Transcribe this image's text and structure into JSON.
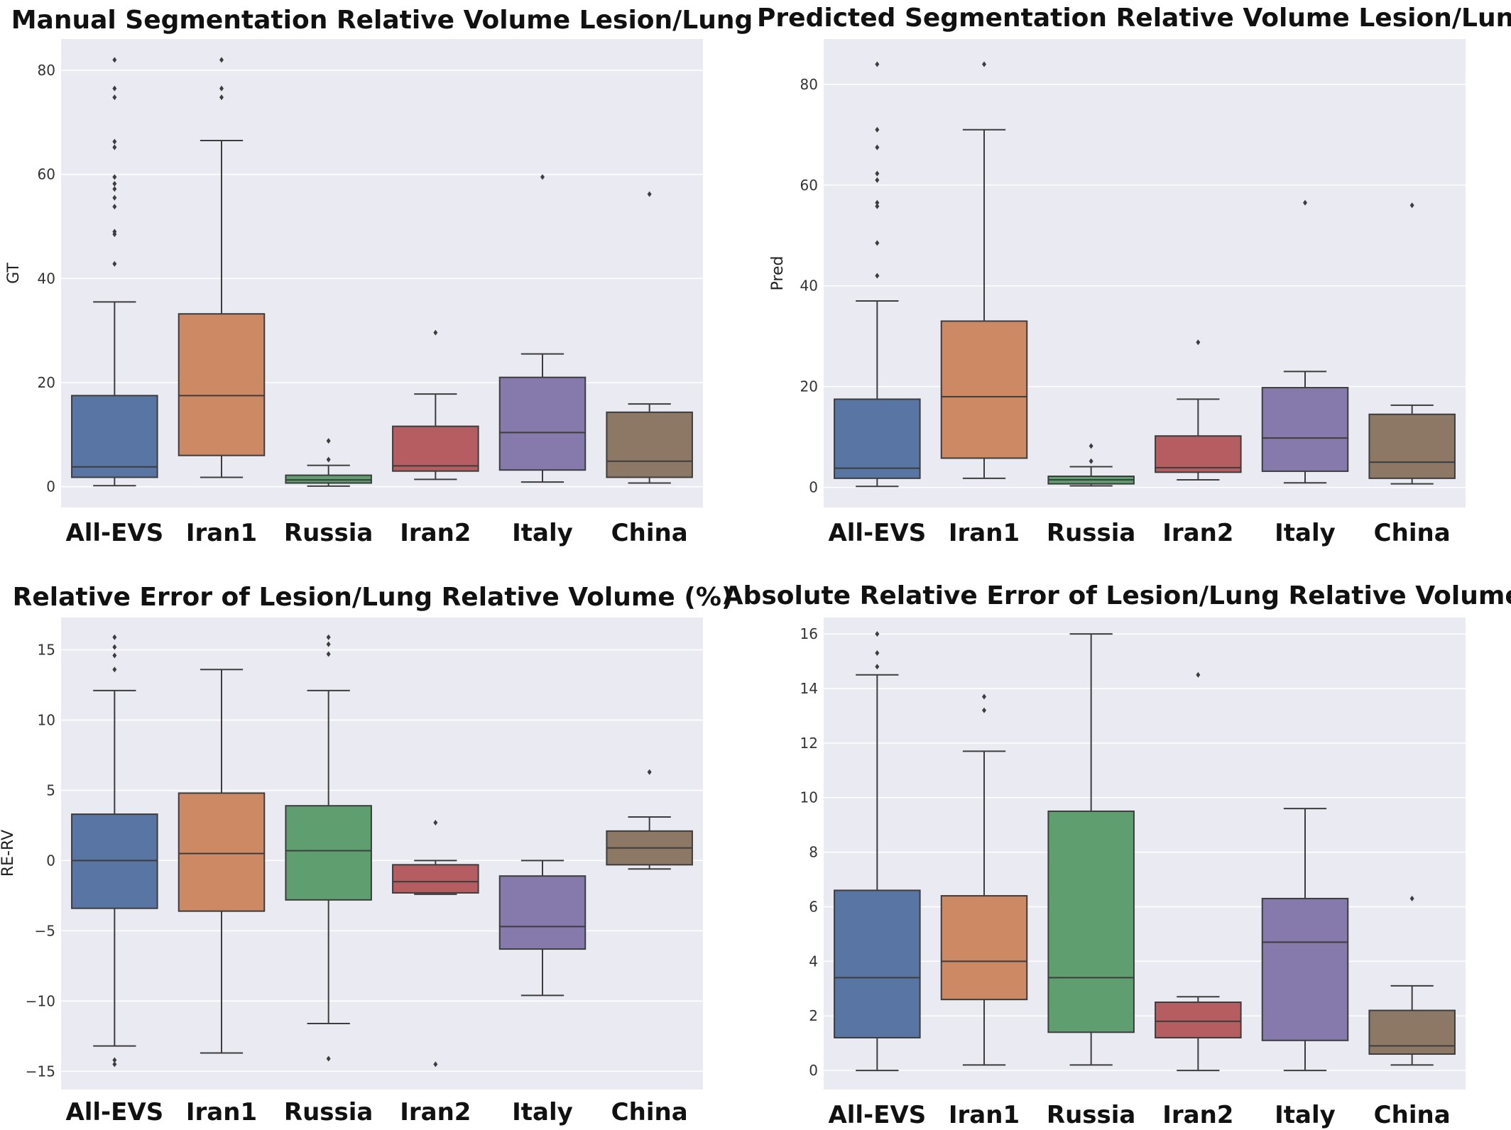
{
  "chart_data": [
    {
      "type": "box",
      "title": "Manual Segmentation Relative Volume Lesion/Lung",
      "ylabel": "GT",
      "xlabel": "",
      "ylim": [
        -4,
        86
      ],
      "yticks": [
        0,
        20,
        40,
        60,
        80
      ],
      "grid": true,
      "categories": [
        "All-EVS",
        "Iran1",
        "Russia",
        "Iran2",
        "Italy",
        "China"
      ],
      "colors": [
        "#5875a4",
        "#cc8963",
        "#5f9e6e",
        "#b55d60",
        "#857aab",
        "#8d7866"
      ],
      "boxes": [
        {
          "whisker_low": 0.2,
          "q1": 1.8,
          "median": 3.8,
          "q3": 17.5,
          "whisker_high": 35.5,
          "outliers": [
            42.8,
            48.5,
            49.0,
            53.8,
            55.5,
            57.2,
            58.2,
            59.5,
            65.2,
            66.3,
            74.8,
            76.5,
            82.0
          ]
        },
        {
          "whisker_low": 1.8,
          "q1": 6.0,
          "median": 17.5,
          "q3": 33.2,
          "whisker_high": 66.5,
          "outliers": [
            74.8,
            76.5,
            82.0
          ]
        },
        {
          "whisker_low": 0.1,
          "q1": 0.7,
          "median": 1.3,
          "q3": 2.2,
          "whisker_high": 4.1,
          "outliers": [
            5.2,
            8.8
          ]
        },
        {
          "whisker_low": 1.4,
          "q1": 3.0,
          "median": 4.0,
          "q3": 11.6,
          "whisker_high": 17.8,
          "outliers": [
            29.6
          ]
        },
        {
          "whisker_low": 0.9,
          "q1": 3.2,
          "median": 10.4,
          "q3": 21.0,
          "whisker_high": 25.5,
          "outliers": [
            59.5
          ]
        },
        {
          "whisker_low": 0.7,
          "q1": 1.8,
          "median": 4.9,
          "q3": 14.3,
          "whisker_high": 15.9,
          "outliers": [
            56.2
          ]
        }
      ]
    },
    {
      "type": "box",
      "title": "Predicted Segmentation Relative Volume Lesion/Lung",
      "ylabel": "Pred",
      "xlabel": "",
      "ylim": [
        -4,
        89
      ],
      "yticks": [
        0,
        20,
        40,
        60,
        80
      ],
      "grid": true,
      "categories": [
        "All-EVS",
        "Iran1",
        "Russia",
        "Iran2",
        "Italy",
        "China"
      ],
      "colors": [
        "#5875a4",
        "#cc8963",
        "#5f9e6e",
        "#b55d60",
        "#857aab",
        "#8d7866"
      ],
      "boxes": [
        {
          "whisker_low": 0.2,
          "q1": 1.8,
          "median": 3.8,
          "q3": 17.5,
          "whisker_high": 37.0,
          "outliers": [
            42.0,
            48.5,
            55.8,
            56.5,
            61.0,
            62.3,
            67.5,
            71.0,
            84.0
          ]
        },
        {
          "whisker_low": 1.8,
          "q1": 5.8,
          "median": 18.0,
          "q3": 33.0,
          "whisker_high": 71.0,
          "outliers": [
            84.0
          ]
        },
        {
          "whisker_low": 0.3,
          "q1": 0.7,
          "median": 1.5,
          "q3": 2.2,
          "whisker_high": 4.1,
          "outliers": [
            5.2,
            8.2
          ]
        },
        {
          "whisker_low": 1.5,
          "q1": 3.0,
          "median": 3.9,
          "q3": 10.2,
          "whisker_high": 17.5,
          "outliers": [
            28.8
          ]
        },
        {
          "whisker_low": 0.9,
          "q1": 3.2,
          "median": 9.8,
          "q3": 19.8,
          "whisker_high": 23.0,
          "outliers": [
            56.5
          ]
        },
        {
          "whisker_low": 0.7,
          "q1": 1.8,
          "median": 5.0,
          "q3": 14.5,
          "whisker_high": 16.3,
          "outliers": [
            56.0
          ]
        }
      ]
    },
    {
      "type": "box",
      "title": "Relative Error of Lesion/Lung Relative Volume (%)",
      "ylabel": "RE-RV",
      "xlabel": "",
      "ylim": [
        -16.3,
        17.3
      ],
      "yticks": [
        -15,
        -10,
        -5,
        0,
        5,
        10,
        15
      ],
      "grid": true,
      "categories": [
        "All-EVS",
        "Iran1",
        "Russia",
        "Iran2",
        "Italy",
        "China"
      ],
      "colors": [
        "#5875a4",
        "#cc8963",
        "#5f9e6e",
        "#b55d60",
        "#857aab",
        "#8d7866"
      ],
      "boxes": [
        {
          "whisker_low": -13.2,
          "q1": -3.4,
          "median": 0.0,
          "q3": 3.3,
          "whisker_high": 12.1,
          "outliers": [
            -14.5,
            -14.2,
            13.6,
            14.6,
            15.2,
            15.9
          ]
        },
        {
          "whisker_low": -13.7,
          "q1": -3.6,
          "median": 0.5,
          "q3": 4.8,
          "whisker_high": 13.6,
          "outliers": []
        },
        {
          "whisker_low": -11.6,
          "q1": -2.8,
          "median": 0.7,
          "q3": 3.9,
          "whisker_high": 12.1,
          "outliers": [
            -14.1,
            14.7,
            15.4,
            15.9
          ]
        },
        {
          "whisker_low": -2.4,
          "q1": -2.3,
          "median": -1.5,
          "q3": -0.3,
          "whisker_high": 0.0,
          "outliers": [
            -14.5,
            2.7
          ]
        },
        {
          "whisker_low": -9.6,
          "q1": -6.3,
          "median": -4.7,
          "q3": -1.1,
          "whisker_high": 0.0,
          "outliers": []
        },
        {
          "whisker_low": -0.6,
          "q1": -0.3,
          "median": 0.9,
          "q3": 2.1,
          "whisker_high": 3.1,
          "outliers": [
            6.3
          ]
        }
      ]
    },
    {
      "type": "box",
      "title": "Absolute Relative Error of Lesion/Lung Relative Volume (%)",
      "ylabel": "",
      "xlabel": "",
      "ylim": [
        -0.7,
        16.6
      ],
      "yticks": [
        0,
        2,
        4,
        6,
        8,
        10,
        12,
        14,
        16
      ],
      "grid": true,
      "categories": [
        "All-EVS",
        "Iran1",
        "Russia",
        "Iran2",
        "Italy",
        "China"
      ],
      "colors": [
        "#5875a4",
        "#cc8963",
        "#5f9e6e",
        "#b55d60",
        "#857aab",
        "#8d7866"
      ],
      "boxes": [
        {
          "whisker_low": 0.0,
          "q1": 1.2,
          "median": 3.4,
          "q3": 6.6,
          "whisker_high": 14.5,
          "outliers": [
            14.8,
            15.3,
            16.0
          ]
        },
        {
          "whisker_low": 0.2,
          "q1": 2.6,
          "median": 4.0,
          "q3": 6.4,
          "whisker_high": 11.7,
          "outliers": [
            13.2,
            13.7
          ]
        },
        {
          "whisker_low": 0.2,
          "q1": 1.4,
          "median": 3.4,
          "q3": 9.5,
          "whisker_high": 16.0,
          "outliers": []
        },
        {
          "whisker_low": 0.0,
          "q1": 1.2,
          "median": 1.8,
          "q3": 2.5,
          "whisker_high": 2.7,
          "outliers": [
            14.5
          ]
        },
        {
          "whisker_low": 0.0,
          "q1": 1.1,
          "median": 4.7,
          "q3": 6.3,
          "whisker_high": 9.6,
          "outliers": []
        },
        {
          "whisker_low": 0.2,
          "q1": 0.6,
          "median": 0.9,
          "q3": 2.2,
          "whisker_high": 3.1,
          "outliers": [
            6.3
          ]
        }
      ]
    }
  ]
}
